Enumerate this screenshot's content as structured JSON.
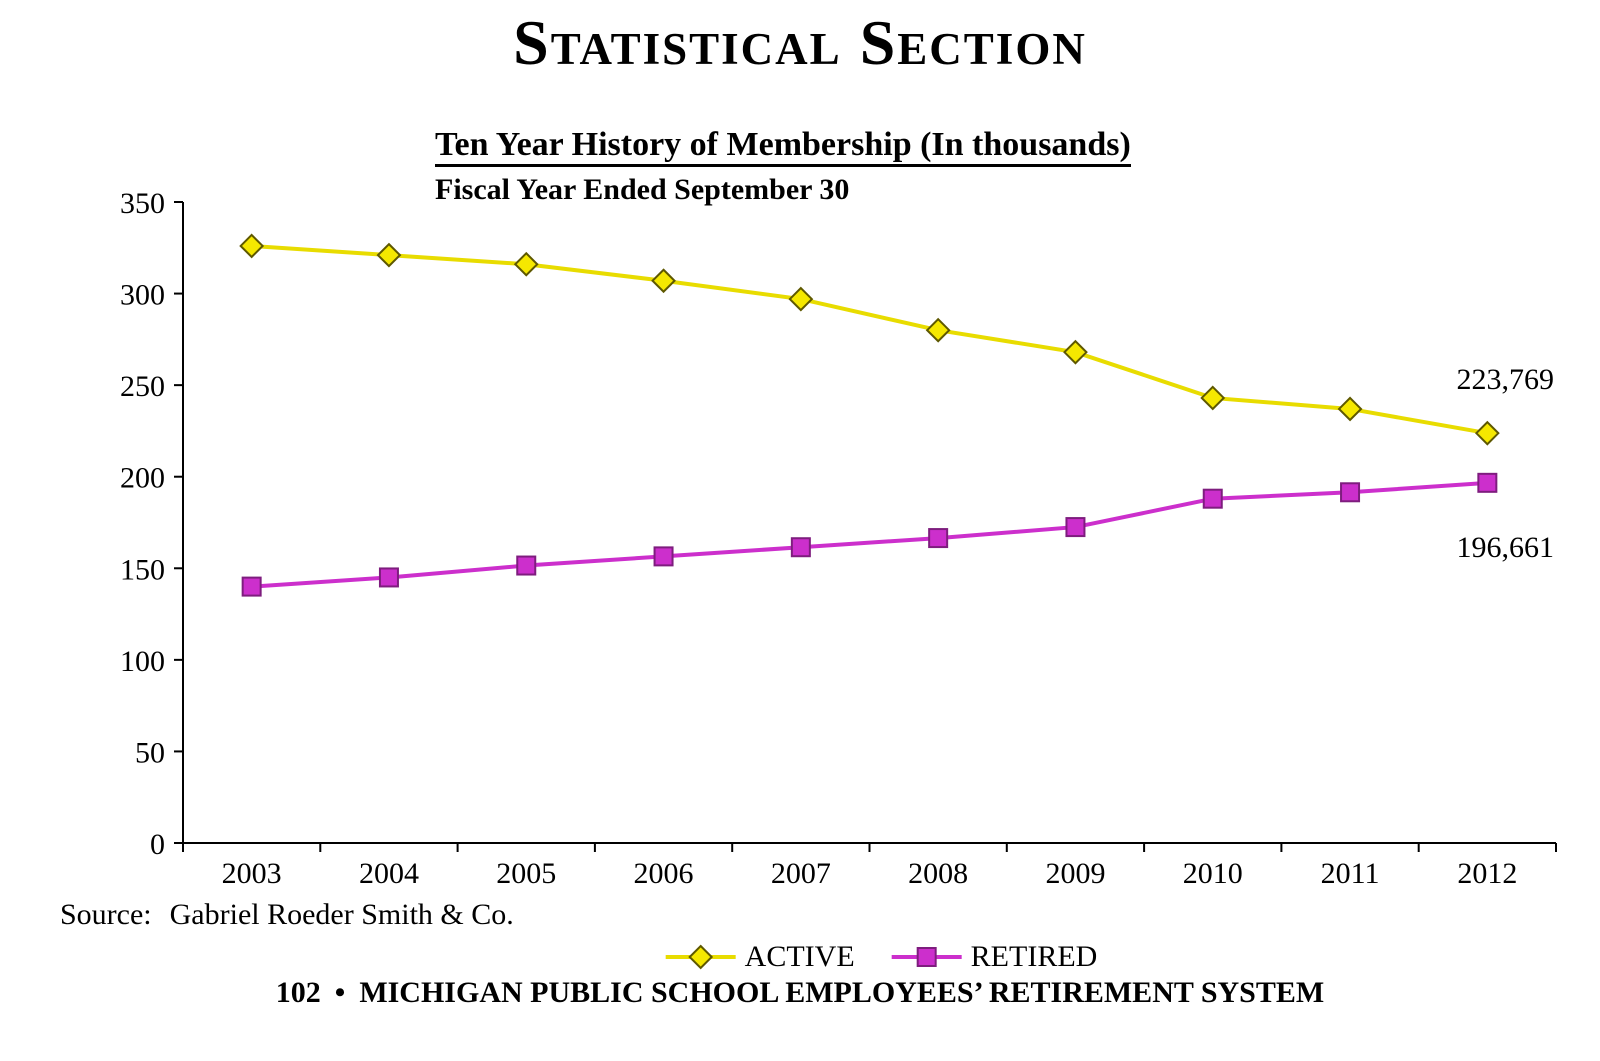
{
  "page": {
    "title": "Statistical Section",
    "source_label": "Source:",
    "source_value": "Gabriel Roeder Smith & Co.",
    "footer": {
      "page_number": "102",
      "bullet": "•",
      "text": "MICHIGAN PUBLIC SCHOOL EMPLOYEES’ RETIREMENT SYSTEM"
    }
  },
  "chart_data": {
    "type": "line",
    "title": "Ten Year History of Membership (In thousands)",
    "subtitle": "Fiscal Year Ended September 30",
    "categories": [
      "2003",
      "2004",
      "2005",
      "2006",
      "2007",
      "2008",
      "2009",
      "2010",
      "2011",
      "2012"
    ],
    "series": [
      {
        "name": "ACTIVE",
        "marker": "diamond",
        "color": "#E8DC00",
        "marker_fill": "#F5E800",
        "marker_stroke": "#5E5800",
        "values": [
          326,
          321,
          316,
          307,
          297,
          280,
          268,
          243,
          237,
          223.769
        ]
      },
      {
        "name": "RETIRED",
        "marker": "square",
        "color": "#CC2FCC",
        "marker_fill": "#CC2FCC",
        "marker_stroke": "#7E1D7E",
        "values": [
          140,
          145,
          151.5,
          156.5,
          161.5,
          166.5,
          172.5,
          188,
          191.5,
          196.661
        ]
      }
    ],
    "annotations": [
      {
        "series": "ACTIVE",
        "text": "223,769",
        "position": "above-right"
      },
      {
        "series": "RETIRED",
        "text": "196,661",
        "position": "below-right"
      }
    ],
    "ylim": [
      0,
      350
    ],
    "ytick_step": 50,
    "grid": false,
    "legend_position": "bottom",
    "axis_color": "#000000"
  }
}
